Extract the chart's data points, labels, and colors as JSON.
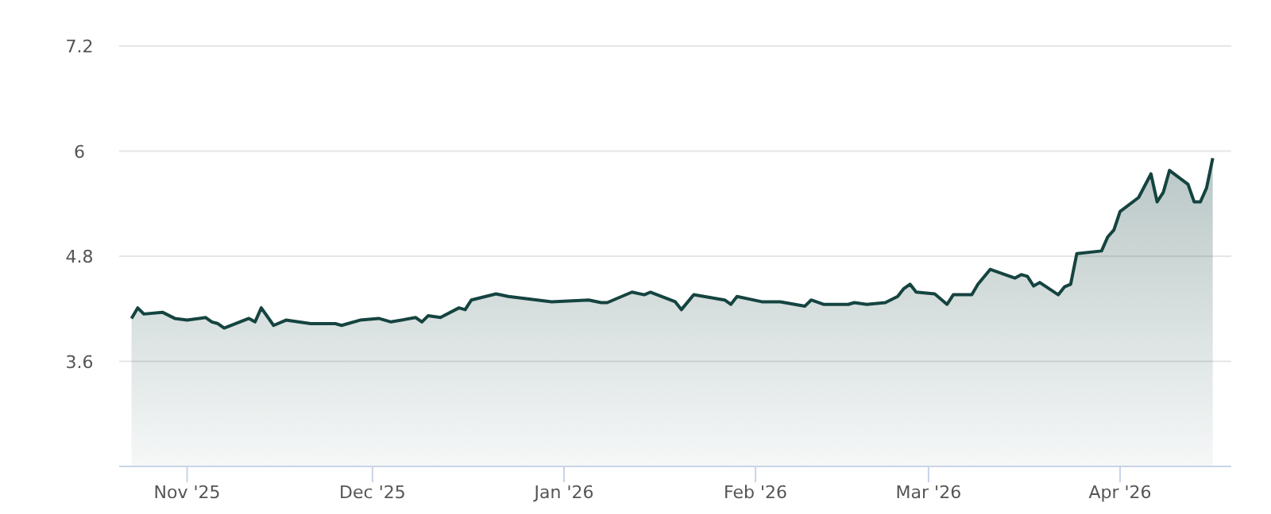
{
  "chart_data": {
    "type": "area",
    "color": "#154440",
    "grid": "y",
    "xlim": [
      "2025-10-21",
      "2026-04-19"
    ],
    "ylim": [
      2.4,
      7.2
    ],
    "yticks": [
      3.6,
      4.8,
      6,
      7.2
    ],
    "xticks": [
      {
        "value": "2025-11-01",
        "label": "Nov '25"
      },
      {
        "value": "2025-12-01",
        "label": "Dec '25"
      },
      {
        "value": "2026-01-01",
        "label": "Jan '26"
      },
      {
        "value": "2026-02-01",
        "label": "Feb '26"
      },
      {
        "value": "2026-03-01",
        "label": "Mar '26"
      },
      {
        "value": "2026-04-01",
        "label": "Apr '26"
      }
    ],
    "x": [
      "2025-10-23",
      "2025-10-24",
      "2025-10-25",
      "2025-10-28",
      "2025-10-30",
      "2025-11-01",
      "2025-11-04",
      "2025-11-05",
      "2025-11-06",
      "2025-11-07",
      "2025-11-11",
      "2025-11-12",
      "2025-11-13",
      "2025-11-15",
      "2025-11-17",
      "2025-11-19",
      "2025-11-21",
      "2025-11-25",
      "2025-11-26",
      "2025-11-27",
      "2025-11-29",
      "2025-12-02",
      "2025-12-04",
      "2025-12-08",
      "2025-12-09",
      "2025-12-10",
      "2025-12-12",
      "2025-12-15",
      "2025-12-16",
      "2025-12-17",
      "2025-12-21",
      "2025-12-23",
      "2025-12-30",
      "2026-01-05",
      "2026-01-07",
      "2026-01-08",
      "2026-01-12",
      "2026-01-14",
      "2026-01-15",
      "2026-01-19",
      "2026-01-20",
      "2026-01-22",
      "2026-01-27",
      "2026-01-28",
      "2026-01-29",
      "2026-02-02",
      "2026-02-05",
      "2026-02-09",
      "2026-02-10",
      "2026-02-12",
      "2026-02-16",
      "2026-02-17",
      "2026-02-19",
      "2026-02-22",
      "2026-02-24",
      "2026-02-25",
      "2026-02-26",
      "2026-02-27",
      "2026-03-02",
      "2026-03-04",
      "2026-03-05",
      "2026-03-08",
      "2026-03-09",
      "2026-03-11",
      "2026-03-15",
      "2026-03-16",
      "2026-03-17",
      "2026-03-18",
      "2026-03-19",
      "2026-03-22",
      "2026-03-23",
      "2026-03-24",
      "2026-03-25",
      "2026-03-29",
      "2026-03-30",
      "2026-03-31",
      "2026-04-01",
      "2026-04-04",
      "2026-04-06",
      "2026-04-07",
      "2026-04-08",
      "2026-04-09",
      "2026-04-12",
      "2026-04-13",
      "2026-04-14",
      "2026-04-15",
      "2026-04-16"
    ],
    "values": [
      4.09,
      4.21,
      4.14,
      4.16,
      4.09,
      4.07,
      4.1,
      4.05,
      4.03,
      3.98,
      4.09,
      4.05,
      4.21,
      4.01,
      4.07,
      4.05,
      4.03,
      4.03,
      4.01,
      4.03,
      4.07,
      4.09,
      4.05,
      4.1,
      4.05,
      4.12,
      4.1,
      4.21,
      4.19,
      4.3,
      4.37,
      4.34,
      4.28,
      4.3,
      4.27,
      4.27,
      4.39,
      4.36,
      4.39,
      4.28,
      4.19,
      4.36,
      4.3,
      4.25,
      4.34,
      4.28,
      4.28,
      4.23,
      4.3,
      4.25,
      4.25,
      4.27,
      4.25,
      4.27,
      4.34,
      4.43,
      4.48,
      4.39,
      4.37,
      4.25,
      4.36,
      4.36,
      4.48,
      4.65,
      4.55,
      4.59,
      4.57,
      4.46,
      4.5,
      4.36,
      4.45,
      4.48,
      4.83,
      4.86,
      5.02,
      5.1,
      5.31,
      5.47,
      5.74,
      5.42,
      5.53,
      5.78,
      5.62,
      5.42,
      5.42,
      5.58,
      5.92
    ]
  }
}
